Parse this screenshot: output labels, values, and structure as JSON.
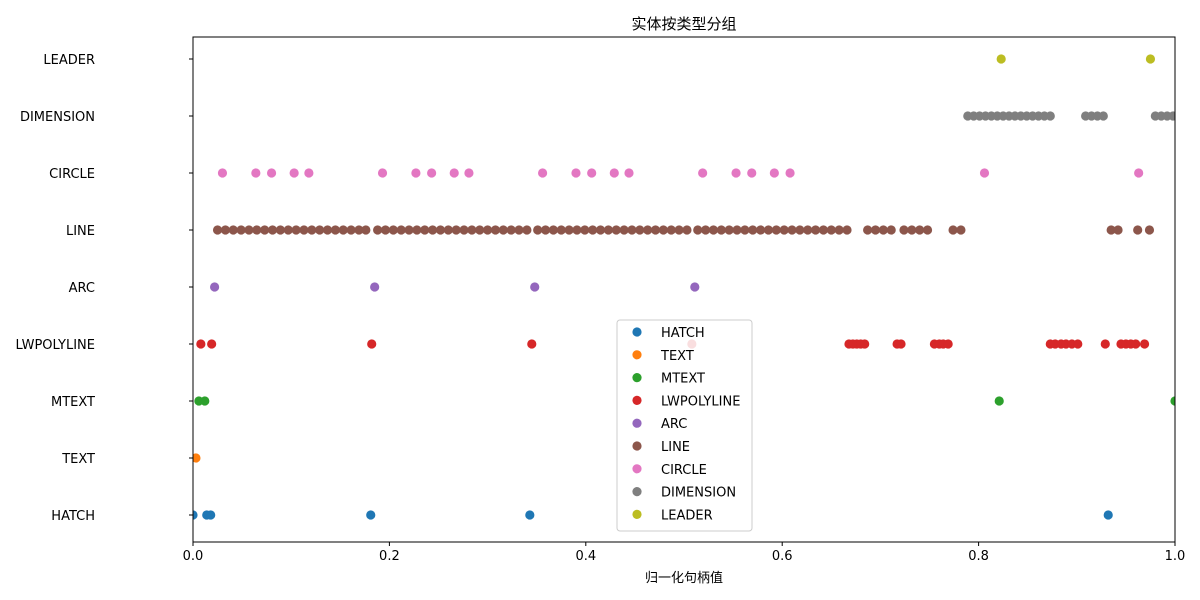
{
  "chart_data": {
    "type": "scatter",
    "title": "实体按类型分组",
    "xlabel": "归一化句柄值",
    "ylabel": "",
    "xlim": [
      0,
      1
    ],
    "xticks": [
      "0.0",
      "0.2",
      "0.4",
      "0.6",
      "0.8",
      "1.0"
    ],
    "xtick_values": [
      0,
      0.2,
      0.4,
      0.6,
      0.8,
      1.0
    ],
    "categories": [
      "HATCH",
      "TEXT",
      "MTEXT",
      "LWPOLYLINE",
      "ARC",
      "LINE",
      "CIRCLE",
      "DIMENSION",
      "LEADER"
    ],
    "grid": false,
    "legend_position": "bottom-center",
    "series": [
      {
        "name": "HATCH",
        "color": "#1f77b4",
        "x": [
          0.0,
          0.014,
          0.018,
          0.181,
          0.343,
          0.932
        ]
      },
      {
        "name": "TEXT",
        "color": "#ff7f0e",
        "x": [
          0.003
        ]
      },
      {
        "name": "MTEXT",
        "color": "#2ca02c",
        "x": [
          0.006,
          0.012,
          0.821,
          1.0
        ]
      },
      {
        "name": "LWPOLYLINE",
        "color": "#d62728",
        "x": [
          0.008,
          0.019,
          0.182,
          0.345,
          0.508,
          0.668,
          0.672,
          0.676,
          0.68,
          0.684,
          0.717,
          0.721,
          0.755,
          0.76,
          0.764,
          0.769,
          0.873,
          0.878,
          0.884,
          0.889,
          0.895,
          0.901,
          0.929,
          0.945,
          0.95,
          0.955,
          0.96,
          0.969
        ]
      },
      {
        "name": "ARC",
        "color": "#9467bd",
        "x": [
          0.022,
          0.185,
          0.348,
          0.511
        ]
      },
      {
        "name": "LINE",
        "color": "#8c564b",
        "x": [
          0.025,
          0.033,
          0.041,
          0.049,
          0.057,
          0.065,
          0.073,
          0.081,
          0.089,
          0.097,
          0.105,
          0.113,
          0.121,
          0.129,
          0.137,
          0.145,
          0.153,
          0.161,
          0.169,
          0.176,
          0.188,
          0.196,
          0.204,
          0.212,
          0.22,
          0.228,
          0.236,
          0.244,
          0.252,
          0.26,
          0.268,
          0.276,
          0.284,
          0.292,
          0.3,
          0.308,
          0.316,
          0.324,
          0.332,
          0.34,
          0.351,
          0.359,
          0.367,
          0.375,
          0.383,
          0.391,
          0.399,
          0.407,
          0.415,
          0.423,
          0.431,
          0.439,
          0.447,
          0.455,
          0.463,
          0.471,
          0.479,
          0.487,
          0.495,
          0.503,
          0.514,
          0.522,
          0.53,
          0.538,
          0.546,
          0.554,
          0.562,
          0.57,
          0.578,
          0.586,
          0.594,
          0.602,
          0.61,
          0.618,
          0.626,
          0.634,
          0.642,
          0.65,
          0.658,
          0.666,
          0.687,
          0.695,
          0.703,
          0.711,
          0.724,
          0.732,
          0.74,
          0.748,
          0.774,
          0.782,
          0.935,
          0.942,
          0.962,
          0.974
        ]
      },
      {
        "name": "CIRCLE",
        "color": "#e377c2",
        "x": [
          0.03,
          0.064,
          0.08,
          0.103,
          0.118,
          0.193,
          0.227,
          0.243,
          0.266,
          0.281,
          0.356,
          0.39,
          0.406,
          0.429,
          0.444,
          0.519,
          0.553,
          0.569,
          0.592,
          0.608,
          0.806,
          0.963
        ]
      },
      {
        "name": "DIMENSION",
        "color": "#7f7f7f",
        "x": [
          0.789,
          0.795,
          0.801,
          0.807,
          0.813,
          0.819,
          0.825,
          0.831,
          0.837,
          0.843,
          0.849,
          0.855,
          0.861,
          0.867,
          0.873,
          0.909,
          0.915,
          0.921,
          0.927,
          0.98,
          0.986,
          0.992,
          0.998
        ]
      },
      {
        "name": "LEADER",
        "color": "#bcbd22",
        "x": [
          0.823,
          0.975
        ]
      }
    ]
  }
}
